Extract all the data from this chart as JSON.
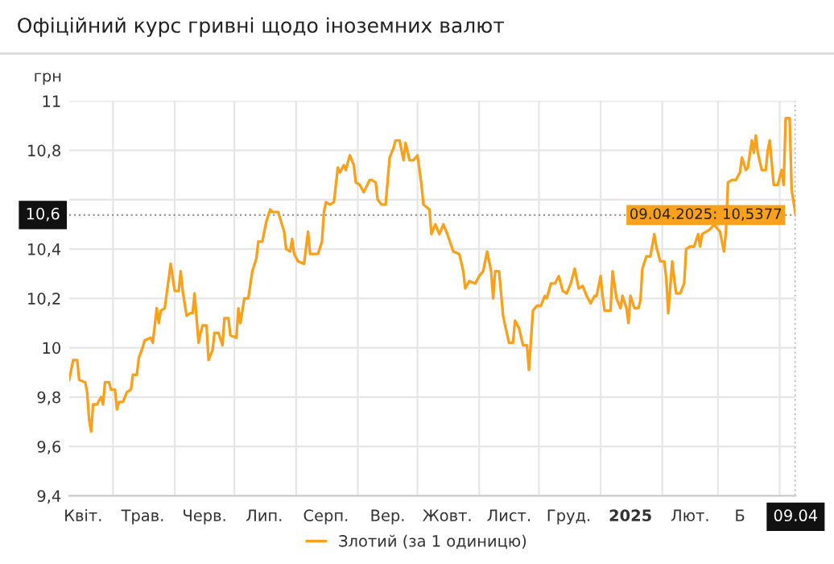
{
  "chart_data": {
    "type": "line",
    "title": "Офіційний курс гривні щодо іноземних валют",
    "ylabel": "грн",
    "x": [
      "2024-04-09",
      "2024-04-11",
      "2024-04-13",
      "2024-04-14",
      "2024-04-17",
      "2024-04-18",
      "2024-04-19",
      "2024-04-20",
      "2024-04-21",
      "2024-04-23",
      "2024-04-25",
      "2024-04-26",
      "2024-04-27",
      "2024-04-29",
      "2024-04-30",
      "2024-05-02",
      "2024-05-03",
      "2024-05-04",
      "2024-05-06",
      "2024-05-08",
      "2024-05-10",
      "2024-05-11",
      "2024-05-13",
      "2024-05-14",
      "2024-05-15",
      "2024-05-17",
      "2024-05-20",
      "2024-05-21",
      "2024-05-23",
      "2024-05-24",
      "2024-05-25",
      "2024-05-27",
      "2024-05-30",
      "2024-06-01",
      "2024-06-03",
      "2024-06-04",
      "2024-06-05",
      "2024-06-07",
      "2024-06-09",
      "2024-06-10",
      "2024-06-11",
      "2024-06-13",
      "2024-06-14",
      "2024-06-15",
      "2024-06-17",
      "2024-06-18",
      "2024-06-20",
      "2024-06-21",
      "2024-06-23",
      "2024-06-25",
      "2024-06-26",
      "2024-06-28",
      "2024-06-29",
      "2024-07-02",
      "2024-07-03",
      "2024-07-04",
      "2024-07-06",
      "2024-07-08",
      "2024-07-10",
      "2024-07-12",
      "2024-07-13",
      "2024-07-15",
      "2024-07-17",
      "2024-07-19",
      "2024-07-20",
      "2024-07-23",
      "2024-07-26",
      "2024-07-27",
      "2024-07-29",
      "2024-07-30",
      "2024-07-31",
      "2024-08-02",
      "2024-08-05",
      "2024-08-07",
      "2024-08-08",
      "2024-08-12",
      "2024-08-14",
      "2024-08-15",
      "2024-08-16",
      "2024-08-18",
      "2024-08-20",
      "2024-08-22",
      "2024-08-23",
      "2024-08-25",
      "2024-08-26",
      "2024-08-28",
      "2024-08-30",
      "2024-08-31",
      "2024-09-02",
      "2024-09-04",
      "2024-09-07",
      "2024-09-08",
      "2024-09-10",
      "2024-09-11",
      "2024-09-13",
      "2024-09-15",
      "2024-09-17",
      "2024-09-19",
      "2024-09-20",
      "2024-09-22",
      "2024-09-24",
      "2024-09-25",
      "2024-09-27",
      "2024-09-29",
      "2024-10-01",
      "2024-10-03",
      "2024-10-04",
      "2024-10-07",
      "2024-10-08",
      "2024-10-10",
      "2024-10-12",
      "2024-10-14",
      "2024-10-16",
      "2024-10-19",
      "2024-10-22",
      "2024-10-24",
      "2024-10-25",
      "2024-10-27",
      "2024-10-30",
      "2024-11-01",
      "2024-11-03",
      "2024-11-05",
      "2024-11-07",
      "2024-11-08",
      "2024-11-09",
      "2024-11-11",
      "2024-11-13",
      "2024-11-14",
      "2024-11-16",
      "2024-11-18",
      "2024-11-19",
      "2024-11-21",
      "2024-11-23",
      "2024-11-25",
      "2024-11-26",
      "2024-11-28",
      "2024-11-30",
      "2024-12-02",
      "2024-12-04",
      "2024-12-05",
      "2024-12-07",
      "2024-12-09",
      "2024-12-11",
      "2024-12-13",
      "2024-12-15",
      "2024-12-17",
      "2024-12-19",
      "2024-12-21",
      "2024-12-23",
      "2024-12-25",
      "2024-12-27",
      "2024-12-29",
      "2024-12-30",
      "2025-01-01",
      "2025-01-02",
      "2025-01-03",
      "2025-01-06",
      "2025-01-07",
      "2025-01-09",
      "2025-01-11",
      "2025-01-12",
      "2025-01-14",
      "2025-01-15",
      "2025-01-16",
      "2025-01-18",
      "2025-01-20",
      "2025-01-21",
      "2025-01-22",
      "2025-01-24",
      "2025-01-26",
      "2025-01-28",
      "2025-01-29",
      "2025-01-31",
      "2025-02-02",
      "2025-02-03",
      "2025-02-04",
      "2025-02-06",
      "2025-02-07",
      "2025-02-08",
      "2025-02-10",
      "2025-02-12",
      "2025-02-13",
      "2025-02-15",
      "2025-02-17",
      "2025-02-19",
      "2025-02-20",
      "2025-02-21",
      "2025-02-23",
      "2025-02-25",
      "2025-02-27",
      "2025-03-02",
      "2025-03-04",
      "2025-03-05",
      "2025-03-06",
      "2025-03-08",
      "2025-03-10",
      "2025-03-12",
      "2025-03-13",
      "2025-03-15",
      "2025-03-16",
      "2025-03-18",
      "2025-03-19",
      "2025-03-20",
      "2025-03-21",
      "2025-03-23",
      "2025-03-25",
      "2025-03-26",
      "2025-03-27",
      "2025-03-29",
      "2025-03-31",
      "2025-04-02",
      "2025-04-03",
      "2025-04-04",
      "2025-04-06",
      "2025-04-07",
      "2025-04-09"
    ],
    "series": [
      {
        "name": "Злотий (за 1 одиницю)",
        "color": "#f9a11b",
        "values": [
          9.87,
          9.95,
          9.95,
          9.87,
          9.86,
          9.82,
          9.71,
          9.66,
          9.77,
          9.77,
          9.8,
          9.77,
          9.86,
          9.86,
          9.83,
          9.83,
          9.75,
          9.78,
          9.78,
          9.82,
          9.83,
          9.89,
          9.89,
          9.96,
          9.98,
          10.03,
          10.04,
          10.02,
          10.16,
          10.1,
          10.15,
          10.16,
          10.34,
          10.23,
          10.23,
          10.31,
          10.23,
          10.13,
          10.14,
          10.14,
          10.22,
          10.02,
          10.06,
          10.09,
          10.09,
          9.95,
          9.99,
          10.06,
          10.06,
          10.01,
          10.12,
          10.12,
          10.05,
          10.04,
          10.16,
          10.1,
          10.2,
          10.2,
          10.31,
          10.36,
          10.43,
          10.43,
          10.51,
          10.56,
          10.55,
          10.55,
          10.47,
          10.4,
          10.39,
          10.44,
          10.38,
          10.35,
          10.34,
          10.47,
          10.38,
          10.38,
          10.43,
          10.55,
          10.59,
          10.58,
          10.59,
          10.73,
          10.71,
          10.74,
          10.72,
          10.78,
          10.74,
          10.67,
          10.66,
          10.63,
          10.68,
          10.68,
          10.67,
          10.6,
          10.58,
          10.58,
          10.77,
          10.81,
          10.84,
          10.84,
          10.76,
          10.83,
          10.76,
          10.76,
          10.78,
          10.66,
          10.58,
          10.56,
          10.46,
          10.5,
          10.46,
          10.5,
          10.46,
          10.39,
          10.38,
          10.31,
          10.24,
          10.27,
          10.26,
          10.29,
          10.31,
          10.39,
          10.31,
          10.2,
          10.31,
          10.31,
          10.13,
          10.09,
          10.02,
          10.02,
          10.11,
          10.08,
          10.01,
          10.01,
          9.91,
          10.15,
          10.17,
          10.17,
          10.21,
          10.2,
          10.26,
          10.26,
          10.29,
          10.23,
          10.22,
          10.26,
          10.32,
          10.24,
          10.25,
          10.21,
          10.18,
          10.21,
          10.21,
          10.29,
          10.21,
          10.15,
          10.15,
          10.31,
          10.2,
          10.16,
          10.21,
          10.16,
          10.1,
          10.21,
          10.16,
          10.16,
          10.19,
          10.32,
          10.37,
          10.37,
          10.46,
          10.41,
          10.35,
          10.35,
          10.28,
          10.14,
          10.35,
          10.28,
          10.22,
          10.22,
          10.26,
          10.4,
          10.41,
          10.41,
          10.46,
          10.41,
          10.46,
          10.47,
          10.48,
          10.5,
          10.47,
          10.39,
          10.47,
          10.67,
          10.68,
          10.68,
          10.71,
          10.77,
          10.72,
          10.73,
          10.84,
          10.79,
          10.86,
          10.79,
          10.72,
          10.72,
          10.8,
          10.84,
          10.66,
          10.66,
          10.72,
          10.66,
          10.93,
          10.93,
          10.64,
          10.5377
        ]
      }
    ],
    "xlim": [
      "2024-04-09",
      "2025-04-09"
    ],
    "xticks": [
      {
        "value": "2024-04-16",
        "label": "Квіт."
      },
      {
        "value": "2024-05-01",
        "label": null
      },
      {
        "value": "2024-05-16",
        "label": "Трав."
      },
      {
        "value": "2024-06-01",
        "label": null
      },
      {
        "value": "2024-06-16",
        "label": "Черв."
      },
      {
        "value": "2024-07-01",
        "label": null
      },
      {
        "value": "2024-07-16",
        "label": "Лип."
      },
      {
        "value": "2024-08-01",
        "label": null
      },
      {
        "value": "2024-08-16",
        "label": "Серп."
      },
      {
        "value": "2024-09-01",
        "label": null
      },
      {
        "value": "2024-09-16",
        "label": "Вер."
      },
      {
        "value": "2024-10-01",
        "label": null
      },
      {
        "value": "2024-10-16",
        "label": "Жовт."
      },
      {
        "value": "2024-11-01",
        "label": null
      },
      {
        "value": "2024-11-16",
        "label": "Лист."
      },
      {
        "value": "2024-12-01",
        "label": null
      },
      {
        "value": "2024-12-16",
        "label": "Груд."
      },
      {
        "value": "2025-01-01",
        "label": null
      },
      {
        "value": "2025-01-16",
        "label": "2025"
      },
      {
        "value": "2025-02-01",
        "label": null
      },
      {
        "value": "2025-02-15",
        "label": "Лют."
      },
      {
        "value": "2025-03-01",
        "label": null
      },
      {
        "value": "2025-03-12",
        "label": "Б"
      },
      {
        "value": "2025-04-01",
        "label": null
      },
      {
        "value": "2025-04-09",
        "label": "09.04"
      }
    ],
    "ylim": [
      9.4,
      11
    ],
    "yticks": [
      {
        "value": 9.4,
        "label": "9,4"
      },
      {
        "value": 9.6,
        "label": "9,6"
      },
      {
        "value": 9.8,
        "label": "9,8"
      },
      10,
      {
        "value": 10.2,
        "label": "10,2"
      },
      {
        "value": 10.4,
        "label": "10,4"
      },
      {
        "value": 10.6,
        "label": null
      },
      {
        "value": 10.8,
        "label": "10,8"
      },
      11
    ],
    "grid": true,
    "legend": "bottom",
    "marker": "none",
    "line_style": "solid",
    "ref_lines": [
      {
        "axis": "y",
        "value": 10.5377,
        "color": "#999999",
        "line_style": "dotted"
      },
      {
        "axis": "x",
        "value": "2025-04-09",
        "color": "#999999",
        "line_style": "dotted"
      }
    ],
    "annotations": [
      {
        "text": "09.04.2025: 10,5377",
        "x": "2025-04-09",
        "y": 10.5377
      },
      {
        "text": "10,6",
        "y": 10.5377
      }
    ]
  }
}
